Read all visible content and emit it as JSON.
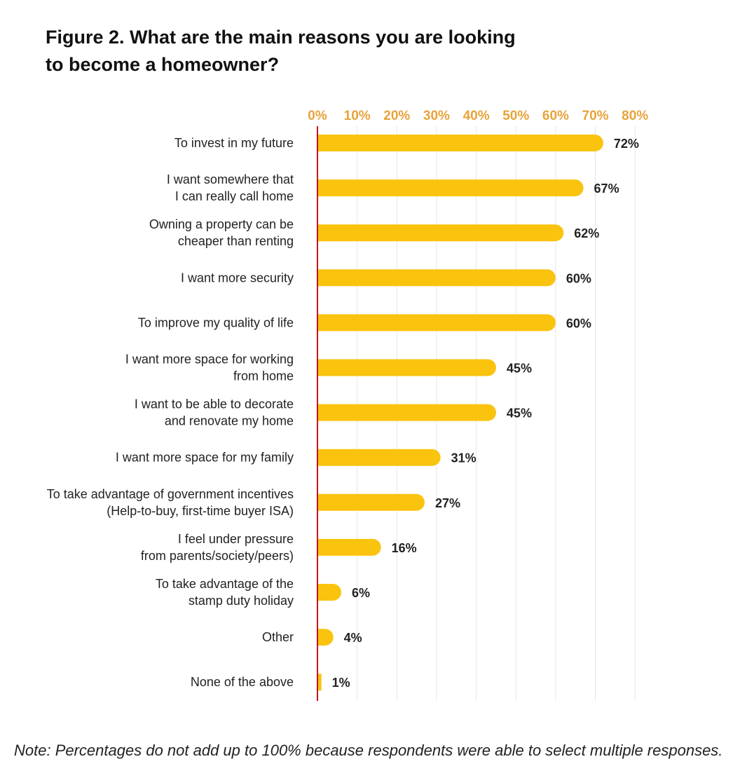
{
  "title_lines": [
    "Figure 2. What are the main reasons you are looking",
    "to become a homeowner?"
  ],
  "note": "Note: Percentages do not add up to 100% because respondents were able to select multiple responses.",
  "colors": {
    "bar": "#fac30e",
    "axis_line": "#c0161c",
    "tick_text": "#e8a33a",
    "grid": "#e6e6e6"
  },
  "chart_data": {
    "type": "bar",
    "orientation": "horizontal",
    "xlim": [
      0,
      80
    ],
    "xticks": [
      0,
      10,
      20,
      30,
      40,
      50,
      60,
      70,
      80
    ],
    "xtick_labels": [
      "0%",
      "10%",
      "20%",
      "30%",
      "40%",
      "50%",
      "60%",
      "70%",
      "80%"
    ],
    "axis_position": "top",
    "grid": true,
    "categories": [
      [
        "To invest in my future"
      ],
      [
        "I want somewhere that",
        "I can really call home"
      ],
      [
        "Owning a property can be",
        "cheaper than renting"
      ],
      [
        "I want more security"
      ],
      [
        "To improve my quality of life"
      ],
      [
        "I want more space for working",
        "from home"
      ],
      [
        "I want to be able to decorate",
        "and renovate my home"
      ],
      [
        "I want more space for my family"
      ],
      [
        "To take advantage of government incentives",
        "(Help-to-buy, first-time buyer ISA)"
      ],
      [
        "I feel under pressure",
        "from parents/society/peers)"
      ],
      [
        "To take advantage of the",
        "stamp duty holiday"
      ],
      [
        "Other"
      ],
      [
        "None of the above"
      ]
    ],
    "values": [
      72,
      67,
      62,
      60,
      60,
      45,
      45,
      31,
      27,
      16,
      6,
      4,
      1
    ],
    "value_labels": [
      "72%",
      "67%",
      "62%",
      "60%",
      "60%",
      "45%",
      "45%",
      "31%",
      "27%",
      "16%",
      "6%",
      "4%",
      "1%"
    ]
  }
}
